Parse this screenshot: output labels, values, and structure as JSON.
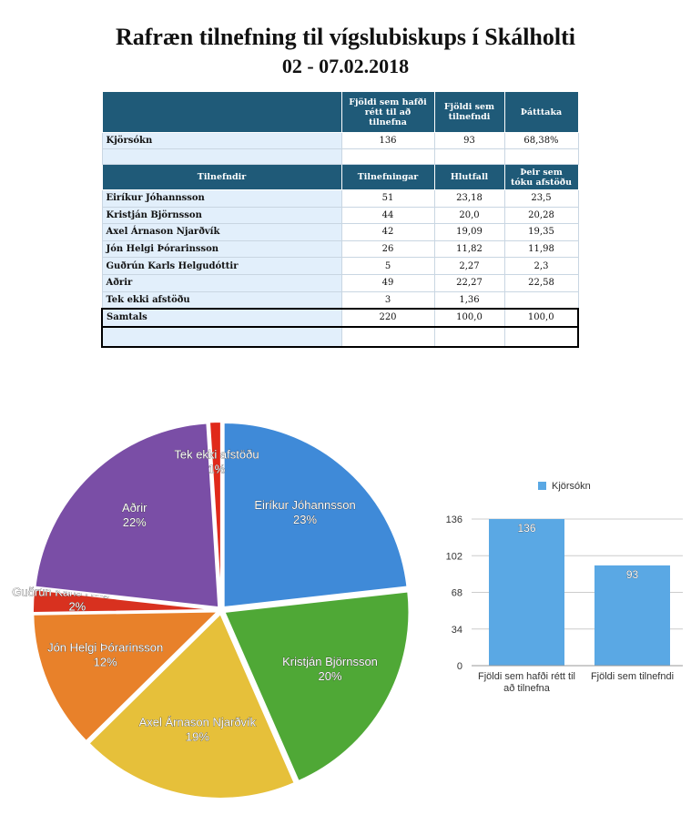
{
  "header": {
    "title": "Rafræn tilnefning til vígslubiskups í Skálholti",
    "subtitle": "02 - 07.02.2018"
  },
  "table": {
    "header": [
      null,
      "Fjöldi sem hafði rétt til að tilnefna",
      "Fjöldi sem tilnefndi",
      "Þátttaka"
    ],
    "summary": [
      "Kjörsókn",
      "136",
      "93",
      "68,38%"
    ],
    "header2": [
      "Tilnefndir",
      "Tilnefningar",
      "Hlutfall",
      "Þeir sem tóku afstöðu"
    ],
    "rows": [
      [
        "Eiríkur Jóhannsson",
        "51",
        "23,18",
        "23,5"
      ],
      [
        "Kristján Björnsson",
        "44",
        "20,0",
        "20,28"
      ],
      [
        "Axel Árnason Njarðvík",
        "42",
        "19,09",
        "19,35"
      ],
      [
        "Jón Helgi Þórarinsson",
        "26",
        "11,82",
        "11,98"
      ],
      [
        "Guðrún Karls Helgudóttir",
        "5",
        "2,27",
        "2,3"
      ],
      [
        "Aðrir",
        "49",
        "22,27",
        "22,58"
      ],
      [
        "Tek ekki afstöðu",
        "3",
        "1,36",
        null
      ]
    ],
    "total": [
      "Samtals",
      "220",
      "100,0",
      "100,0"
    ]
  },
  "chart_data": [
    {
      "type": "pie",
      "categories": [
        "Eiríkur Jóhannsson",
        "Kristján Björnsson",
        "Axel Árnason Njarðvík",
        "Jón Helgi Þórarinsson",
        "Guðrún Karls Helgudóttir",
        "Aðrir",
        "Tek ekki afstöðu"
      ],
      "values": [
        23,
        20,
        19,
        12,
        2,
        22,
        1
      ],
      "value_labels": [
        "23%",
        "20%",
        "19%",
        "12%",
        "2%",
        "22%",
        "1%"
      ],
      "colors": [
        "#3f8ad8",
        "#4fa836",
        "#e6c03a",
        "#e8812a",
        "#d8311f",
        "#7a4ea6",
        "#e0291a"
      ]
    },
    {
      "type": "bar",
      "categories": [
        "Fjöldi sem hafði rétt til að tilnefna",
        "Fjöldi sem tilnefndi"
      ],
      "series": [
        {
          "name": "Kjörsókn",
          "color": "#5aa8e4",
          "values": [
            136,
            93
          ]
        }
      ],
      "ylim": [
        0,
        136
      ],
      "yticks": [
        0,
        34,
        68,
        102,
        136
      ],
      "grid": true,
      "legend": "top"
    }
  ]
}
